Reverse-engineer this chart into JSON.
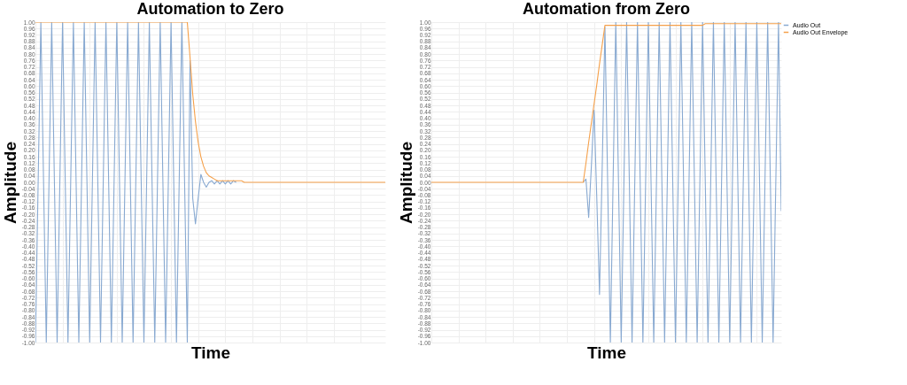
{
  "chart_data": [
    {
      "type": "line",
      "title": "Automation to Zero",
      "xlabel": "Time",
      "ylabel": "Amplitude",
      "tick_labels": "y",
      "grid": true,
      "categories": [
        null,
        null,
        null,
        null,
        null,
        null,
        null,
        null,
        null,
        null,
        null,
        null,
        null,
        null,
        null,
        null,
        null,
        null,
        null,
        null,
        null,
        null,
        null,
        null,
        null,
        null,
        null,
        null,
        null,
        null,
        null,
        null,
        null,
        null,
        null,
        null,
        null,
        null,
        null,
        null,
        null,
        null,
        null,
        null,
        null,
        null,
        null,
        null,
        null,
        null,
        null,
        null,
        null,
        null,
        null,
        null,
        null,
        null,
        null,
        null,
        null,
        null,
        null,
        null,
        null,
        null,
        null,
        null,
        null,
        null,
        null,
        null,
        null,
        null,
        null,
        null,
        null,
        null,
        null,
        null,
        null,
        null,
        null,
        null,
        null,
        null,
        null,
        null,
        null,
        null,
        null,
        null,
        null,
        null,
        null,
        null,
        null,
        null,
        null,
        null,
        null,
        null,
        null,
        null,
        null,
        null,
        null,
        null,
        null,
        null,
        null,
        null,
        null,
        null,
        null,
        null,
        null,
        null,
        null,
        null,
        null,
        null,
        null,
        null,
        null,
        null,
        null,
        null,
        null,
        null
      ],
      "ylim": [
        -1,
        1
      ],
      "yticks": [
        {
          "value": -1,
          "label": "-1.00"
        },
        {
          "value": -0.96,
          "label": "-0.96"
        },
        {
          "value": -0.92,
          "label": "-0.92"
        },
        {
          "value": -0.88,
          "label": "-0.88"
        },
        {
          "value": -0.84,
          "label": "-0.84"
        },
        {
          "value": -0.8,
          "label": "-0.80"
        },
        {
          "value": -0.76,
          "label": "-0.76"
        },
        {
          "value": -0.72,
          "label": "-0.72"
        },
        {
          "value": -0.68,
          "label": "-0.68"
        },
        {
          "value": -0.64,
          "label": "-0.64"
        },
        {
          "value": -0.6,
          "label": "-0.60"
        },
        {
          "value": -0.56,
          "label": "-0.56"
        },
        {
          "value": -0.52,
          "label": "-0.52"
        },
        {
          "value": -0.48,
          "label": "-0.48"
        },
        {
          "value": -0.44,
          "label": "-0.44"
        },
        {
          "value": -0.4,
          "label": "-0.40"
        },
        {
          "value": -0.36,
          "label": "-0.36"
        },
        {
          "value": -0.32,
          "label": "-0.32"
        },
        {
          "value": -0.28,
          "label": "-0.28"
        },
        {
          "value": -0.24,
          "label": "-0.24"
        },
        {
          "value": -0.2,
          "label": "-0.20"
        },
        {
          "value": -0.16,
          "label": "-0.16"
        },
        {
          "value": -0.12,
          "label": "-0.12"
        },
        {
          "value": -0.08,
          "label": "-0.08"
        },
        {
          "value": -0.04,
          "label": "-0.04"
        },
        {
          "value": 0,
          "label": "0.00"
        },
        {
          "value": 0.04,
          "label": "0.04"
        },
        {
          "value": 0.08,
          "label": "0.08"
        },
        {
          "value": 0.12,
          "label": "0.12"
        },
        {
          "value": 0.16,
          "label": "0.16"
        },
        {
          "value": 0.2,
          "label": "0.20"
        },
        {
          "value": 0.24,
          "label": "0.24"
        },
        {
          "value": 0.28,
          "label": "0.28"
        },
        {
          "value": 0.32,
          "label": "0.32"
        },
        {
          "value": 0.36,
          "label": "0.36"
        },
        {
          "value": 0.4,
          "label": "0.40"
        },
        {
          "value": 0.44,
          "label": "0.44"
        },
        {
          "value": 0.48,
          "label": "0.48"
        },
        {
          "value": 0.52,
          "label": "0.52"
        },
        {
          "value": 0.56,
          "label": "0.56"
        },
        {
          "value": 0.6,
          "label": "0.60"
        },
        {
          "value": 0.64,
          "label": "0.64"
        },
        {
          "value": 0.68,
          "label": "0.68"
        },
        {
          "value": 0.72,
          "label": "0.72"
        },
        {
          "value": 0.76,
          "label": "0.76"
        },
        {
          "value": 0.8,
          "label": "0.80"
        },
        {
          "value": 0.84,
          "label": "0.84"
        },
        {
          "value": 0.88,
          "label": "0.88"
        },
        {
          "value": 0.92,
          "label": "0.92"
        },
        {
          "value": 0.96,
          "label": "0.96"
        },
        {
          "value": 1,
          "label": "1.00"
        }
      ],
      "series": [
        {
          "color": "#88a9d1",
          "values": [
            -1,
            0,
            1,
            0,
            -1,
            0,
            1,
            0,
            -1,
            0,
            1,
            0,
            -1,
            0,
            1,
            0,
            -1,
            0,
            1,
            0,
            -1,
            0,
            1,
            0,
            -1,
            0,
            1,
            0,
            -1,
            0,
            1,
            0,
            -1,
            0,
            1,
            0,
            -1,
            0,
            1,
            0,
            -1,
            0,
            1,
            0,
            -1,
            0,
            1,
            0,
            -1,
            0,
            1,
            0,
            -1,
            0,
            1,
            0,
            -1,
            0.76,
            -0.1,
            -0.26,
            -0.1,
            0.05,
            0,
            -0.03,
            0,
            0.01,
            -0.01,
            0.01,
            -0.01,
            0.01,
            -0.01,
            0.01,
            -0.01,
            0.01,
            0,
            null,
            null,
            null,
            null,
            null,
            null,
            null,
            null,
            null,
            null,
            null,
            null,
            null,
            null,
            null,
            null,
            null,
            null,
            null,
            null,
            null,
            null,
            null,
            null,
            null,
            null,
            null,
            null,
            null,
            null,
            null,
            null,
            null,
            null,
            null,
            null,
            null,
            null,
            null,
            null,
            null,
            null,
            null,
            null,
            null,
            null,
            null,
            null,
            null,
            null,
            null,
            null,
            null,
            null,
            null
          ]
        },
        {
          "color": "#f5a04a",
          "values": [
            1,
            1,
            1,
            1,
            1,
            1,
            1,
            1,
            1,
            1,
            1,
            1,
            1,
            1,
            1,
            1,
            1,
            1,
            1,
            1,
            1,
            1,
            1,
            1,
            1,
            1,
            1,
            1,
            1,
            1,
            1,
            1,
            1,
            1,
            1,
            1,
            1,
            1,
            1,
            1,
            1,
            1,
            1,
            1,
            1,
            1,
            1,
            1,
            1,
            1,
            1,
            1,
            1,
            1,
            1,
            1,
            1,
            0.78,
            0.55,
            0.38,
            0.25,
            0.16,
            0.1,
            0.06,
            0.04,
            0.03,
            0.02,
            0.01,
            0.01,
            0.01,
            0.01,
            0.01,
            0.01,
            0.01,
            0.01,
            0.01,
            0.01,
            0,
            0,
            0,
            0,
            0,
            0,
            0,
            0,
            0,
            0,
            0,
            0,
            0,
            0,
            0,
            0,
            0,
            0,
            0,
            0,
            0,
            0,
            0,
            0,
            0,
            0,
            0,
            0,
            0,
            0,
            0,
            0,
            0,
            0,
            0,
            0,
            0,
            0,
            0,
            0,
            0,
            0,
            0,
            0,
            0,
            0,
            0,
            0,
            0,
            0,
            0,
            0,
            0
          ]
        }
      ]
    },
    {
      "type": "line",
      "title": "Automation from Zero",
      "xlabel": "Time",
      "ylabel": "Amplitude",
      "tick_labels": "y",
      "grid": true,
      "legend": "top right",
      "categories": [
        null,
        null,
        null,
        null,
        null,
        null,
        null,
        null,
        null,
        null,
        null,
        null,
        null,
        null,
        null,
        null,
        null,
        null,
        null,
        null,
        null,
        null,
        null,
        null,
        null,
        null,
        null,
        null,
        null,
        null,
        null,
        null,
        null,
        null,
        null,
        null,
        null,
        null,
        null,
        null,
        null,
        null,
        null,
        null,
        null,
        null,
        null,
        null,
        null,
        null,
        null,
        null,
        null,
        null,
        null,
        null,
        null,
        null,
        null,
        null,
        null,
        null,
        null,
        null,
        null,
        null,
        null,
        null,
        null,
        null,
        null,
        null,
        null,
        null,
        null,
        null,
        null,
        null,
        null,
        null,
        null,
        null,
        null,
        null,
        null,
        null,
        null,
        null,
        null,
        null,
        null,
        null,
        null,
        null,
        null,
        null,
        null,
        null,
        null,
        null,
        null,
        null,
        null,
        null,
        null,
        null,
        null,
        null,
        null,
        null,
        null,
        null,
        null,
        null,
        null,
        null,
        null,
        null,
        null,
        null,
        null,
        null,
        null,
        null,
        null,
        null,
        null,
        null,
        null,
        null
      ],
      "ylim": [
        -1,
        1
      ],
      "yticks": [
        {
          "value": -1,
          "label": "-1.00"
        },
        {
          "value": -0.96,
          "label": "-0.96"
        },
        {
          "value": -0.92,
          "label": "-0.92"
        },
        {
          "value": -0.88,
          "label": "-0.88"
        },
        {
          "value": -0.84,
          "label": "-0.84"
        },
        {
          "value": -0.8,
          "label": "-0.80"
        },
        {
          "value": -0.76,
          "label": "-0.76"
        },
        {
          "value": -0.72,
          "label": "-0.72"
        },
        {
          "value": -0.68,
          "label": "-0.68"
        },
        {
          "value": -0.64,
          "label": "-0.64"
        },
        {
          "value": -0.6,
          "label": "-0.60"
        },
        {
          "value": -0.56,
          "label": "-0.56"
        },
        {
          "value": -0.52,
          "label": "-0.52"
        },
        {
          "value": -0.48,
          "label": "-0.48"
        },
        {
          "value": -0.44,
          "label": "-0.44"
        },
        {
          "value": -0.4,
          "label": "-0.40"
        },
        {
          "value": -0.36,
          "label": "-0.36"
        },
        {
          "value": -0.32,
          "label": "-0.32"
        },
        {
          "value": -0.28,
          "label": "-0.28"
        },
        {
          "value": -0.24,
          "label": "-0.24"
        },
        {
          "value": -0.2,
          "label": "-0.20"
        },
        {
          "value": -0.16,
          "label": "-0.16"
        },
        {
          "value": -0.12,
          "label": "-0.12"
        },
        {
          "value": -0.08,
          "label": "-0.08"
        },
        {
          "value": -0.04,
          "label": "-0.04"
        },
        {
          "value": 0,
          "label": "0.00"
        },
        {
          "value": 0.04,
          "label": "0.04"
        },
        {
          "value": 0.08,
          "label": "0.08"
        },
        {
          "value": 0.12,
          "label": "0.12"
        },
        {
          "value": 0.16,
          "label": "0.16"
        },
        {
          "value": 0.2,
          "label": "0.20"
        },
        {
          "value": 0.24,
          "label": "0.24"
        },
        {
          "value": 0.28,
          "label": "0.28"
        },
        {
          "value": 0.32,
          "label": "0.32"
        },
        {
          "value": 0.36,
          "label": "0.36"
        },
        {
          "value": 0.4,
          "label": "0.40"
        },
        {
          "value": 0.44,
          "label": "0.44"
        },
        {
          "value": 0.48,
          "label": "0.48"
        },
        {
          "value": 0.52,
          "label": "0.52"
        },
        {
          "value": 0.56,
          "label": "0.56"
        },
        {
          "value": 0.6,
          "label": "0.60"
        },
        {
          "value": 0.64,
          "label": "0.64"
        },
        {
          "value": 0.68,
          "label": "0.68"
        },
        {
          "value": 0.72,
          "label": "0.72"
        },
        {
          "value": 0.76,
          "label": "0.76"
        },
        {
          "value": 0.8,
          "label": "0.80"
        },
        {
          "value": 0.84,
          "label": "0.84"
        },
        {
          "value": 0.88,
          "label": "0.88"
        },
        {
          "value": 0.92,
          "label": "0.92"
        },
        {
          "value": 0.96,
          "label": "0.96"
        },
        {
          "value": 1,
          "label": "1.00"
        }
      ],
      "series": [
        {
          "name": "Audio Out",
          "color": "#88a9d1",
          "values": [
            null,
            null,
            null,
            null,
            null,
            null,
            null,
            null,
            null,
            null,
            null,
            null,
            null,
            null,
            null,
            null,
            null,
            null,
            null,
            null,
            null,
            null,
            null,
            null,
            null,
            null,
            null,
            null,
            null,
            null,
            null,
            null,
            null,
            null,
            null,
            null,
            null,
            null,
            null,
            null,
            null,
            null,
            null,
            null,
            null,
            null,
            null,
            null,
            null,
            null,
            null,
            null,
            null,
            null,
            null,
            null,
            0,
            0.02,
            -0.22,
            0.1,
            0.45,
            -0.1,
            -0.7,
            0.1,
            0.97,
            0,
            -1,
            0,
            1,
            0,
            -1,
            0,
            1,
            0,
            -1,
            0,
            1,
            0,
            -1,
            0,
            1,
            0,
            -1,
            0,
            1,
            0,
            -1,
            0,
            1,
            0,
            -1,
            0,
            1,
            0,
            -1,
            0,
            1,
            0,
            -1,
            0,
            1,
            0,
            -1,
            0,
            1,
            0,
            -1,
            0,
            1,
            0,
            -1,
            0,
            1,
            0,
            -1,
            0,
            1,
            0,
            -1,
            0,
            1,
            0,
            -1,
            0,
            1,
            0,
            -1,
            0,
            1,
            -0.18
          ]
        },
        {
          "name": "Audio Out Envelope",
          "color": "#f5a04a",
          "values": [
            0,
            0,
            0,
            0,
            0,
            0,
            0,
            0,
            0,
            0,
            0,
            0,
            0,
            0,
            0,
            0,
            0,
            0,
            0,
            0,
            0,
            0,
            0,
            0,
            0,
            0,
            0,
            0,
            0,
            0,
            0,
            0,
            0,
            0,
            0,
            0,
            0,
            0,
            0,
            0,
            0,
            0,
            0,
            0,
            0,
            0,
            0,
            0,
            0,
            0,
            0,
            0,
            0,
            0,
            0,
            0,
            0,
            0.12,
            0.25,
            0.37,
            0.49,
            0.61,
            0.74,
            0.86,
            0.98,
            0.98,
            0.98,
            0.98,
            0.98,
            0.98,
            0.98,
            0.98,
            0.98,
            0.98,
            0.98,
            0.98,
            0.98,
            0.98,
            0.98,
            0.98,
            0.98,
            0.98,
            0.98,
            0.98,
            0.98,
            0.98,
            0.98,
            0.98,
            0.98,
            0.98,
            0.98,
            0.98,
            0.98,
            0.98,
            0.98,
            0.98,
            0.98,
            0.98,
            0.98,
            0.98,
            0.98,
            0.99,
            0.99,
            0.99,
            0.99,
            0.99,
            0.99,
            0.99,
            0.99,
            0.99,
            0.99,
            0.99,
            0.99,
            0.99,
            0.99,
            0.99,
            0.99,
            0.99,
            0.99,
            0.99,
            0.99,
            0.99,
            0.99,
            0.99,
            0.99,
            0.99,
            0.99,
            0.99,
            0.99,
            0.99
          ]
        }
      ]
    }
  ]
}
